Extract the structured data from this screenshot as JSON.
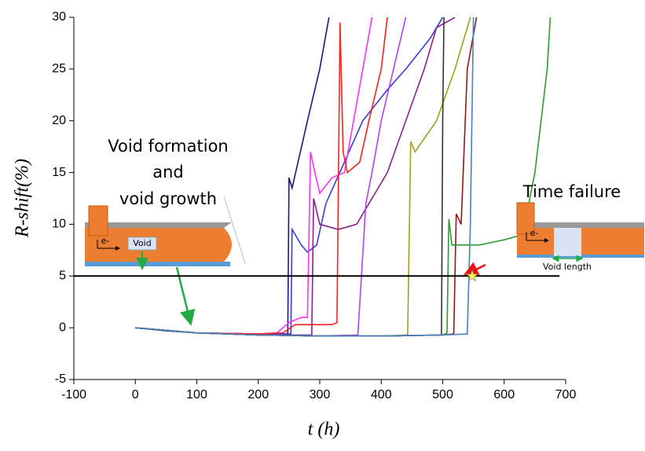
{
  "chart_data": {
    "type": "line",
    "xlabel": "t (h)",
    "ylabel": "R-shift(%)",
    "xlim": [
      -100,
      700
    ],
    "ylim": [
      -5,
      30
    ],
    "xticks": [
      -100,
      0,
      100,
      200,
      300,
      400,
      500,
      600,
      700
    ],
    "yticks": [
      -5,
      0,
      5,
      10,
      15,
      20,
      25,
      30
    ],
    "grid": false,
    "reference_line": {
      "y": 5,
      "x": [
        -100,
        690
      ],
      "color": "#000000"
    },
    "star_marker": {
      "x": 548,
      "y": 5,
      "color": "#ffff44"
    },
    "annotations": {
      "void_text": [
        "Void formation",
        "and",
        "void growth"
      ],
      "failure_text": "Time failure",
      "void_label": "Void",
      "electron_label": "e-",
      "void_length": "Void length"
    },
    "series": [
      {
        "color": "#1a1a7a",
        "x": [
          0,
          50,
          100,
          200,
          248,
          250,
          255,
          280,
          300,
          315
        ],
        "values": [
          0,
          -0.3,
          -0.5,
          -0.6,
          -0.6,
          14.5,
          13.5,
          20,
          25,
          30
        ]
      },
      {
        "color": "#3a3adf",
        "x": [
          0,
          100,
          200,
          253,
          255,
          270,
          280,
          295,
          310,
          340,
          370,
          410,
          440,
          480,
          500
        ],
        "values": [
          0,
          -0.5,
          -0.6,
          -0.6,
          9.5,
          8,
          7.3,
          8,
          12,
          16,
          20,
          23,
          25,
          28,
          30
        ]
      },
      {
        "color": "#ff33ff",
        "x": [
          0,
          100,
          200,
          230,
          250,
          270,
          280,
          285,
          292,
          300,
          320,
          340,
          355,
          370,
          385
        ],
        "values": [
          0,
          -0.5,
          -0.6,
          -0.5,
          0.5,
          1,
          1,
          17,
          15,
          13,
          14.5,
          15,
          20,
          25,
          30
        ]
      },
      {
        "color": "#ff2020",
        "x": [
          0,
          100,
          200,
          240,
          260,
          320,
          328,
          333,
          338,
          345,
          365,
          380,
          400,
          410
        ],
        "values": [
          0,
          -0.5,
          -0.6,
          -0.5,
          0.3,
          0.3,
          0.5,
          29.5,
          17,
          15,
          16,
          20,
          25,
          30
        ]
      },
      {
        "color": "#882288",
        "x": [
          0,
          100,
          200,
          287,
          290,
          300,
          330,
          360,
          380,
          410,
          440,
          470,
          490,
          520
        ],
        "values": [
          0,
          -0.5,
          -0.7,
          -0.7,
          12.5,
          10,
          9.5,
          10,
          12,
          15,
          20,
          25,
          29,
          30
        ]
      },
      {
        "color": "#aa44ff",
        "x": [
          0,
          100,
          200,
          300,
          362,
          375,
          385,
          400,
          420,
          440
        ],
        "values": [
          0,
          -0.5,
          -0.7,
          -0.8,
          -0.7,
          12,
          15,
          20,
          25,
          30
        ]
      },
      {
        "color": "#a0a020",
        "x": [
          0,
          100,
          200,
          300,
          400,
          443,
          448,
          455,
          490,
          520,
          545
        ],
        "values": [
          0,
          -0.5,
          -0.7,
          -0.8,
          -0.8,
          -0.7,
          18,
          17,
          20,
          25,
          30
        ]
      },
      {
        "color": "#333333",
        "x": [
          0,
          100,
          200,
          300,
          400,
          498,
          500,
          502
        ],
        "values": [
          0,
          -0.5,
          -0.7,
          -0.8,
          -0.8,
          -0.7,
          20,
          30
        ]
      },
      {
        "color": "#8b1a1a",
        "x": [
          0,
          100,
          200,
          300,
          400,
          500,
          518,
          522,
          530,
          540,
          555
        ],
        "values": [
          0,
          -0.5,
          -0.7,
          -0.8,
          -0.8,
          -0.7,
          -0.6,
          11,
          10,
          25,
          30
        ]
      },
      {
        "color": "#339933",
        "x": [
          0,
          100,
          200,
          300,
          400,
          500,
          507,
          510,
          515,
          560,
          600,
          630,
          650,
          670,
          675
        ],
        "values": [
          0,
          -0.5,
          -0.7,
          -0.8,
          -0.8,
          -0.7,
          -0.5,
          10.5,
          8,
          8,
          8.5,
          9,
          15,
          25,
          30
        ]
      },
      {
        "color": "#4a7fc0",
        "x": [
          0,
          100,
          200,
          300,
          400,
          500,
          540,
          545,
          550
        ],
        "values": [
          0,
          -0.5,
          -0.7,
          -0.8,
          -0.8,
          -0.7,
          -0.6,
          10,
          30
        ]
      }
    ]
  }
}
